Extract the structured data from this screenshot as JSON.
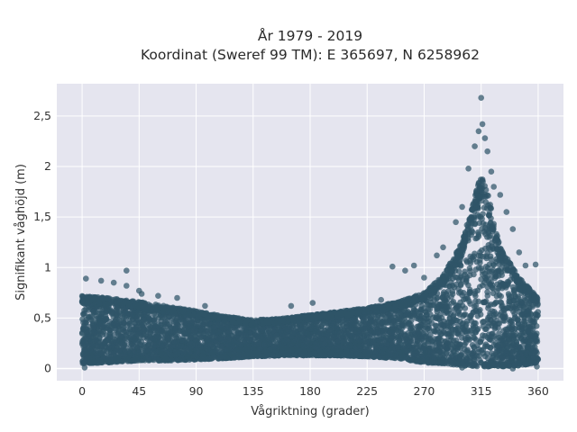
{
  "chart_data": {
    "type": "scatter",
    "title_line1": "År 1979 - 2019",
    "title_line2": "Koordinat (Sweref 99 TM): E 365697, N 6258962",
    "xlabel": "Vågriktning (grader)",
    "ylabel": "Signifikant våghöjd (m)",
    "xlim": [
      -20,
      380
    ],
    "ylim": [
      -0.12,
      2.82
    ],
    "x_ticks": [
      0,
      45,
      90,
      135,
      180,
      225,
      270,
      315,
      360
    ],
    "x_tick_labels": [
      "0",
      "45",
      "90",
      "135",
      "180",
      "225",
      "270",
      "315",
      "360"
    ],
    "y_ticks": [
      0,
      0.5,
      1,
      1.5,
      2,
      2.5
    ],
    "y_tick_labels": [
      "0",
      "0,5",
      "1",
      "1,5",
      "2",
      "2,5"
    ],
    "grid": true,
    "marker_color": "#2f5468",
    "background_color": "#e5e5ef",
    "envelope": {
      "x": [
        0,
        20,
        45,
        70,
        90,
        110,
        135,
        160,
        180,
        200,
        225,
        250,
        270,
        285,
        300,
        310,
        315,
        320,
        330,
        345,
        360
      ],
      "lower": [
        0.05,
        0.06,
        0.08,
        0.08,
        0.09,
        0.1,
        0.12,
        0.13,
        0.13,
        0.13,
        0.12,
        0.1,
        0.06,
        0.05,
        0.03,
        0.02,
        0.02,
        0.02,
        0.02,
        0.03,
        0.06
      ],
      "upper": [
        0.72,
        0.7,
        0.66,
        0.61,
        0.57,
        0.52,
        0.48,
        0.5,
        0.53,
        0.56,
        0.6,
        0.66,
        0.75,
        0.92,
        1.25,
        1.7,
        1.95,
        1.75,
        1.2,
        0.9,
        0.7
      ]
    },
    "outliers": [
      {
        "x": 3,
        "y": 0.89
      },
      {
        "x": 15,
        "y": 0.87
      },
      {
        "x": 25,
        "y": 0.85
      },
      {
        "x": 35,
        "y": 0.82
      },
      {
        "x": 35,
        "y": 0.97
      },
      {
        "x": 45,
        "y": 0.77
      },
      {
        "x": 47,
        "y": 0.74
      },
      {
        "x": 60,
        "y": 0.72
      },
      {
        "x": 75,
        "y": 0.7
      },
      {
        "x": 97,
        "y": 0.62
      },
      {
        "x": 165,
        "y": 0.62
      },
      {
        "x": 182,
        "y": 0.65
      },
      {
        "x": 236,
        "y": 0.68
      },
      {
        "x": 245,
        "y": 1.01
      },
      {
        "x": 255,
        "y": 0.97
      },
      {
        "x": 262,
        "y": 1.02
      },
      {
        "x": 270,
        "y": 0.9
      },
      {
        "x": 280,
        "y": 1.12
      },
      {
        "x": 285,
        "y": 1.2
      },
      {
        "x": 295,
        "y": 1.45
      },
      {
        "x": 300,
        "y": 1.6
      },
      {
        "x": 305,
        "y": 1.98
      },
      {
        "x": 310,
        "y": 2.2
      },
      {
        "x": 313,
        "y": 2.35
      },
      {
        "x": 315,
        "y": 2.68
      },
      {
        "x": 316,
        "y": 2.42
      },
      {
        "x": 318,
        "y": 2.28
      },
      {
        "x": 320,
        "y": 2.15
      },
      {
        "x": 323,
        "y": 1.95
      },
      {
        "x": 325,
        "y": 1.8
      },
      {
        "x": 330,
        "y": 1.72
      },
      {
        "x": 335,
        "y": 1.55
      },
      {
        "x": 340,
        "y": 1.38
      },
      {
        "x": 345,
        "y": 1.15
      },
      {
        "x": 350,
        "y": 1.02
      },
      {
        "x": 358,
        "y": 1.03
      },
      {
        "x": 359,
        "y": 0.02
      },
      {
        "x": 2,
        "y": 0.01
      },
      {
        "x": 340,
        "y": 0.0
      },
      {
        "x": 300,
        "y": 0.01
      }
    ]
  }
}
